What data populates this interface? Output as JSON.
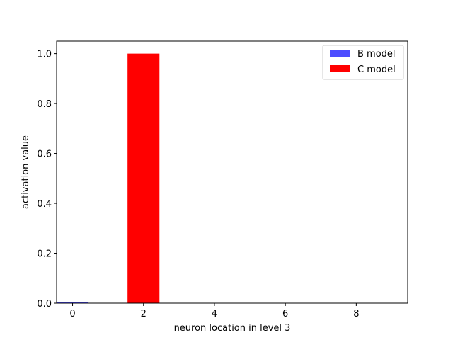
{
  "chart_data": {
    "type": "bar",
    "title": "",
    "xlabel": "neuron location in level 3",
    "ylabel": "activation value",
    "xlim": [
      -0.45,
      9.45
    ],
    "ylim": [
      0,
      1.05
    ],
    "xticks": [
      0,
      2,
      4,
      6,
      8
    ],
    "xtick_labels": [
      "0",
      "2",
      "4",
      "6",
      "8"
    ],
    "yticks": [
      0.0,
      0.2,
      0.4,
      0.6,
      0.8,
      1.0
    ],
    "ytick_labels": [
      "0.0",
      "0.2",
      "0.4",
      "0.6",
      "0.8",
      "1.0"
    ],
    "bar_width": 0.9,
    "grid": false,
    "legend_position": "top-right",
    "series": [
      {
        "name": "B model",
        "color": "#4d4dff",
        "x": [
          0,
          1,
          2,
          3,
          4,
          5,
          6,
          7,
          8,
          9
        ],
        "values": [
          0.003,
          0,
          0,
          0,
          0,
          0,
          0,
          0,
          0,
          0
        ]
      },
      {
        "name": "C model",
        "color": "#ff0000",
        "x": [
          0,
          1,
          2,
          3,
          4,
          5,
          6,
          7,
          8,
          9
        ],
        "values": [
          0,
          0,
          1.0,
          0,
          0,
          0,
          0,
          0,
          0,
          0
        ]
      }
    ]
  }
}
